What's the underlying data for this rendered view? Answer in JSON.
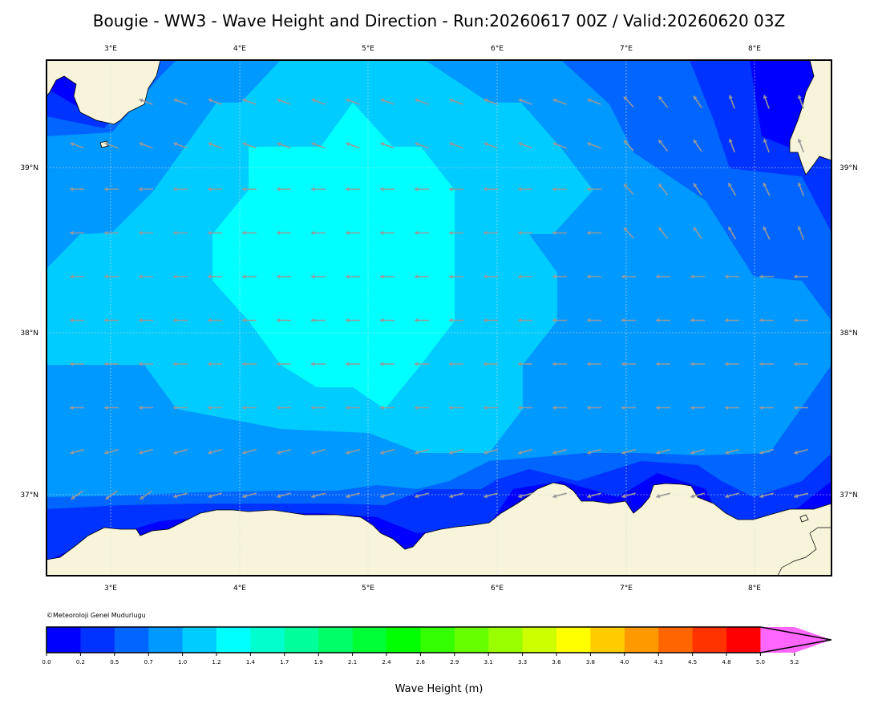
{
  "title": "Bougie - WW3 - Wave Height and Direction - Run:20260617 00Z / Valid:20260620 03Z",
  "copyright": "©Meteoroloji Genel Mudurlugu",
  "colorbar_label": "Wave Height (m)",
  "map": {
    "lon_ticks": [
      "3°E",
      "4°E",
      "5°E",
      "6°E",
      "7°E",
      "8°E"
    ],
    "lat_ticks": [
      "39°N",
      "38°N",
      "37°N"
    ],
    "extent": {
      "lon": [
        2.5,
        8.6
      ],
      "lat": [
        36.5,
        39.65
      ]
    },
    "arrow_color": "#999999",
    "land_color": "#f7f4d9"
  },
  "colorbar": {
    "ticks": [
      "0.0",
      "0.2",
      "0.5",
      "0.7",
      "1.0",
      "1.2",
      "1.4",
      "1.7",
      "1.9",
      "2.1",
      "2.4",
      "2.6",
      "2.9",
      "3.1",
      "3.3",
      "3.6",
      "3.8",
      "4.0",
      "4.3",
      "4.5",
      "4.8",
      "5.0",
      "5.2"
    ],
    "colors": [
      "#0000ff",
      "#0033ff",
      "#0066ff",
      "#0099ff",
      "#00ccff",
      "#00ffff",
      "#00ffcc",
      "#00ff99",
      "#00ff66",
      "#00ff33",
      "#00ff00",
      "#33ff00",
      "#66ff00",
      "#99ff00",
      "#ccff00",
      "#ffff00",
      "#ffcc00",
      "#ff9900",
      "#ff6600",
      "#ff3300",
      "#ff0000",
      "#ff66ff"
    ]
  }
}
